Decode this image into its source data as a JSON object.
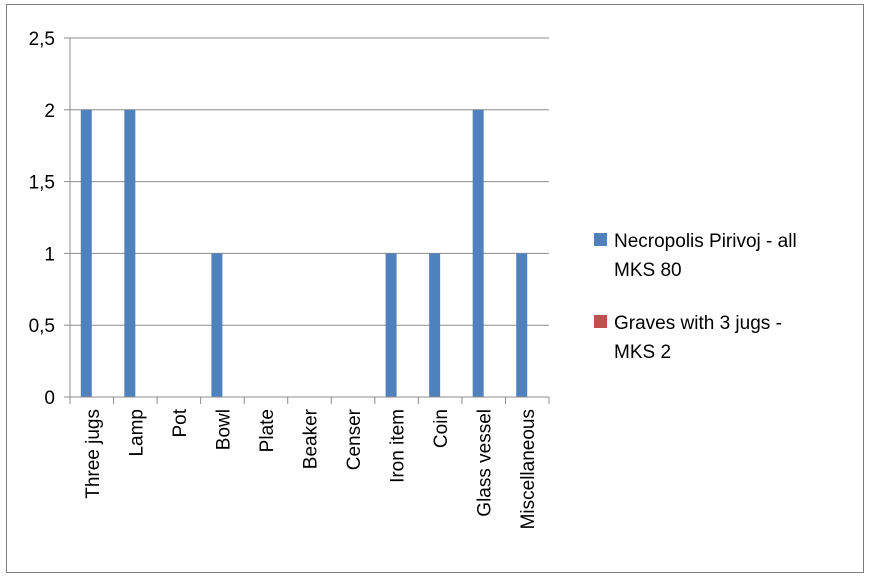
{
  "chart_data": {
    "type": "bar",
    "categories": [
      "Three jugs",
      "Lamp",
      "Pot",
      "Bowl",
      "Plate",
      "Beaker",
      "Censer",
      "Iron item",
      "Coin",
      "Glass vessel",
      "Miscellaneous"
    ],
    "series": [
      {
        "name_lines": [
          "Necropolis Pirivoj - all",
          "MKS 80"
        ],
        "color": "#4f81bd",
        "values": [
          2,
          2,
          0,
          1,
          0,
          0,
          0,
          1,
          1,
          2,
          1
        ]
      },
      {
        "name_lines": [
          "Graves with 3 jugs -",
          "MKS 2"
        ],
        "color": "#c0504d",
        "values": [
          0,
          0,
          0,
          0,
          0,
          0,
          0,
          0,
          0,
          0,
          0
        ]
      }
    ],
    "ylim": [
      0,
      2.5
    ],
    "yticks": [
      "0",
      "0,5",
      "1",
      "1,5",
      "2",
      "2,5"
    ],
    "ytick_values": [
      0,
      0.5,
      1,
      1.5,
      2,
      2.5
    ],
    "grid": true,
    "legend_position": "right"
  }
}
